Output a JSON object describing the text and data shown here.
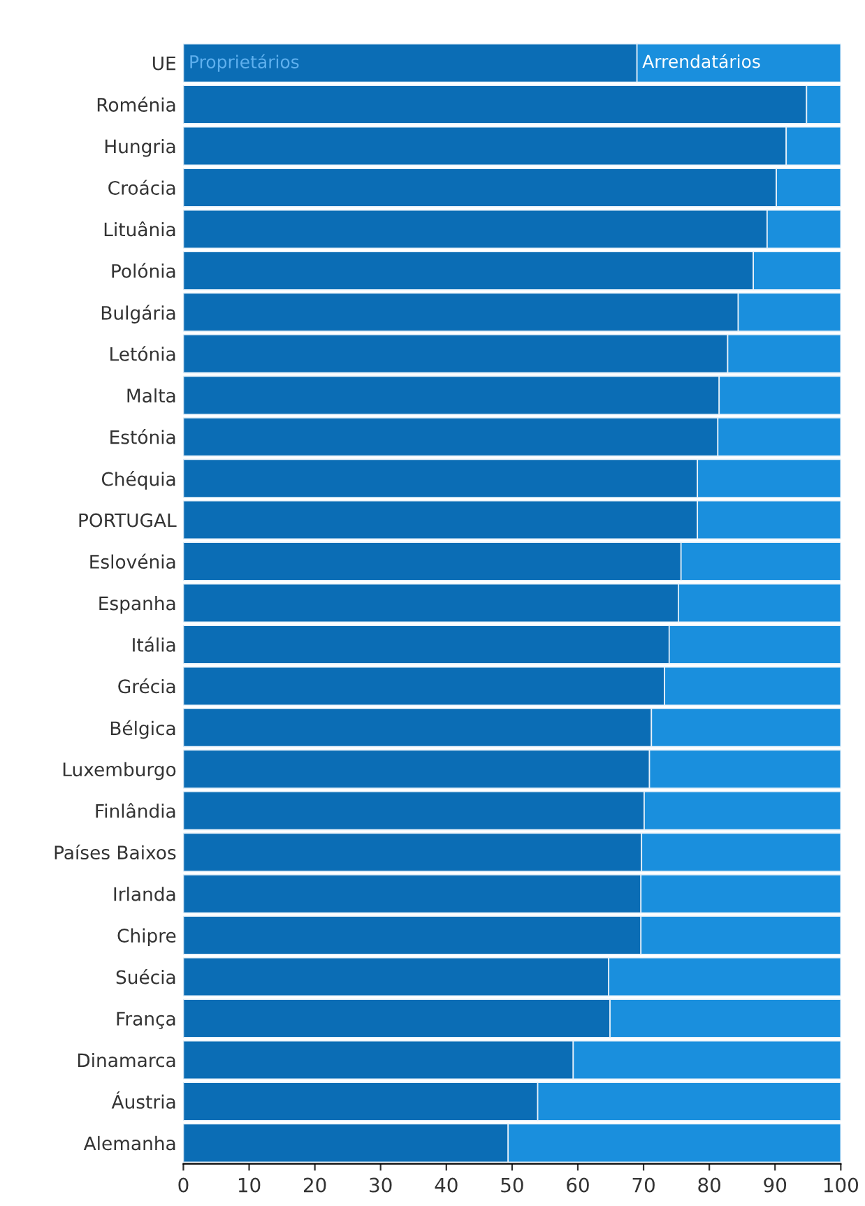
{
  "chart_data": {
    "type": "bar",
    "orientation": "horizontal",
    "stacked": true,
    "categories": [
      "UE",
      "Roménia",
      "Hungria",
      "Croácia",
      "Lituânia",
      "Polónia",
      "Bulgária",
      "Letónia",
      "Malta",
      "Estónia",
      "Chéquia",
      "PORTUGAL",
      "Eslovénia",
      "Espanha",
      "Itália",
      "Grécia",
      "Bélgica",
      "Luxemburgo",
      "Finlândia",
      "Países Baixos",
      "Irlanda",
      "Chipre",
      "Suécia",
      "França",
      "Dinamarca",
      "Áustria",
      "Alemanha"
    ],
    "series": [
      {
        "name": "Proprietários",
        "color": "#0b6db5",
        "values": [
          69,
          94.8,
          91.7,
          90.2,
          88.8,
          86.7,
          84.4,
          82.8,
          81.5,
          81.3,
          78.2,
          78.2,
          75.7,
          75.3,
          73.9,
          73.2,
          71.2,
          70.9,
          70.1,
          69.7,
          69.6,
          69.6,
          64.7,
          64.9,
          59.3,
          53.9,
          49.4
        ]
      },
      {
        "name": "Arrendatários",
        "color": "#1a8fdd",
        "values": [
          31,
          5.2,
          8.3,
          9.8,
          11.2,
          13.3,
          15.6,
          17.2,
          18.5,
          18.7,
          21.8,
          21.8,
          24.3,
          24.7,
          26.1,
          26.8,
          28.8,
          29.1,
          29.9,
          30.3,
          30.4,
          30.4,
          35.3,
          35.1,
          40.7,
          46.1,
          50.6
        ]
      }
    ],
    "xlim": [
      0,
      100
    ],
    "xticks": [
      0,
      10,
      20,
      30,
      40,
      50,
      60,
      70,
      80,
      90,
      100
    ],
    "grid": false,
    "legend": false
  }
}
